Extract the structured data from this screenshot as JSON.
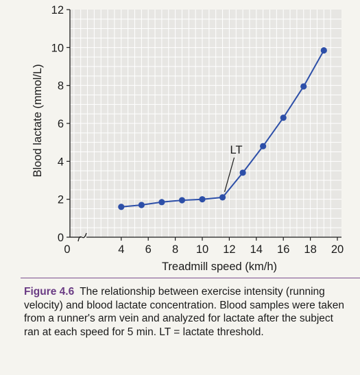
{
  "chart_data": {
    "type": "line",
    "x": [
      4,
      5.5,
      7,
      8.5,
      10,
      11.5,
      13,
      14.5,
      16,
      17.5,
      19
    ],
    "series": [
      {
        "values": [
          1.6,
          1.7,
          1.85,
          1.95,
          2.0,
          2.1,
          3.4,
          4.8,
          6.3,
          7.95,
          9.85
        ]
      }
    ],
    "xlabel": "Treadmill speed (km/h)",
    "ylabel": "Blood lactate (mmol/L)",
    "xlim": [
      0,
      20
    ],
    "ylim": [
      0,
      12
    ],
    "xticks": [
      "0",
      "4",
      "6",
      "8",
      "10",
      "12",
      "14",
      "16",
      "18",
      "20"
    ],
    "yticks": [
      "0",
      "2",
      "4",
      "6",
      "8",
      "10",
      "12"
    ],
    "grid": true,
    "annotations": [
      {
        "text": "LT",
        "x": 11.5,
        "y": 2.1
      }
    ],
    "colors": {
      "line": "#2d4fa8",
      "plot_bg": "#e7e6e3",
      "grid": "#ffffff"
    }
  },
  "caption": {
    "label": "Figure 4.6",
    "text": "The relationship between exercise intensity (running velocity) and blood lactate concentration. Blood samples were taken from a runner's arm vein and analyzed for lactate after the subject ran at each speed for 5 min. LT = lactate threshold."
  }
}
